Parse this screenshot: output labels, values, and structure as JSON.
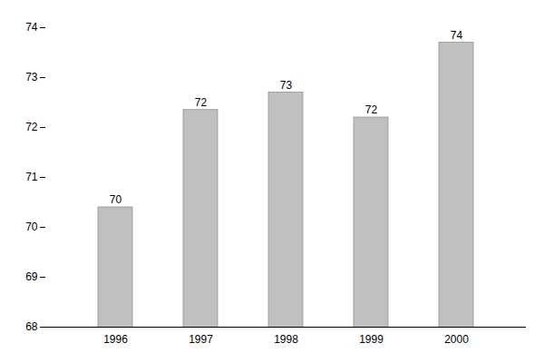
{
  "chart_data": {
    "type": "bar",
    "categories": [
      "1996",
      "1997",
      "1998",
      "1999",
      "2000"
    ],
    "values": [
      70.4,
      72.35,
      72.7,
      72.2,
      73.7
    ],
    "value_labels": [
      "70",
      "72",
      "73",
      "72",
      "74"
    ],
    "color": "#c0c0c0",
    "ylim": [
      68,
      74
    ],
    "yticks": [
      68,
      69,
      70,
      71,
      72,
      73,
      74
    ],
    "grid": false
  }
}
